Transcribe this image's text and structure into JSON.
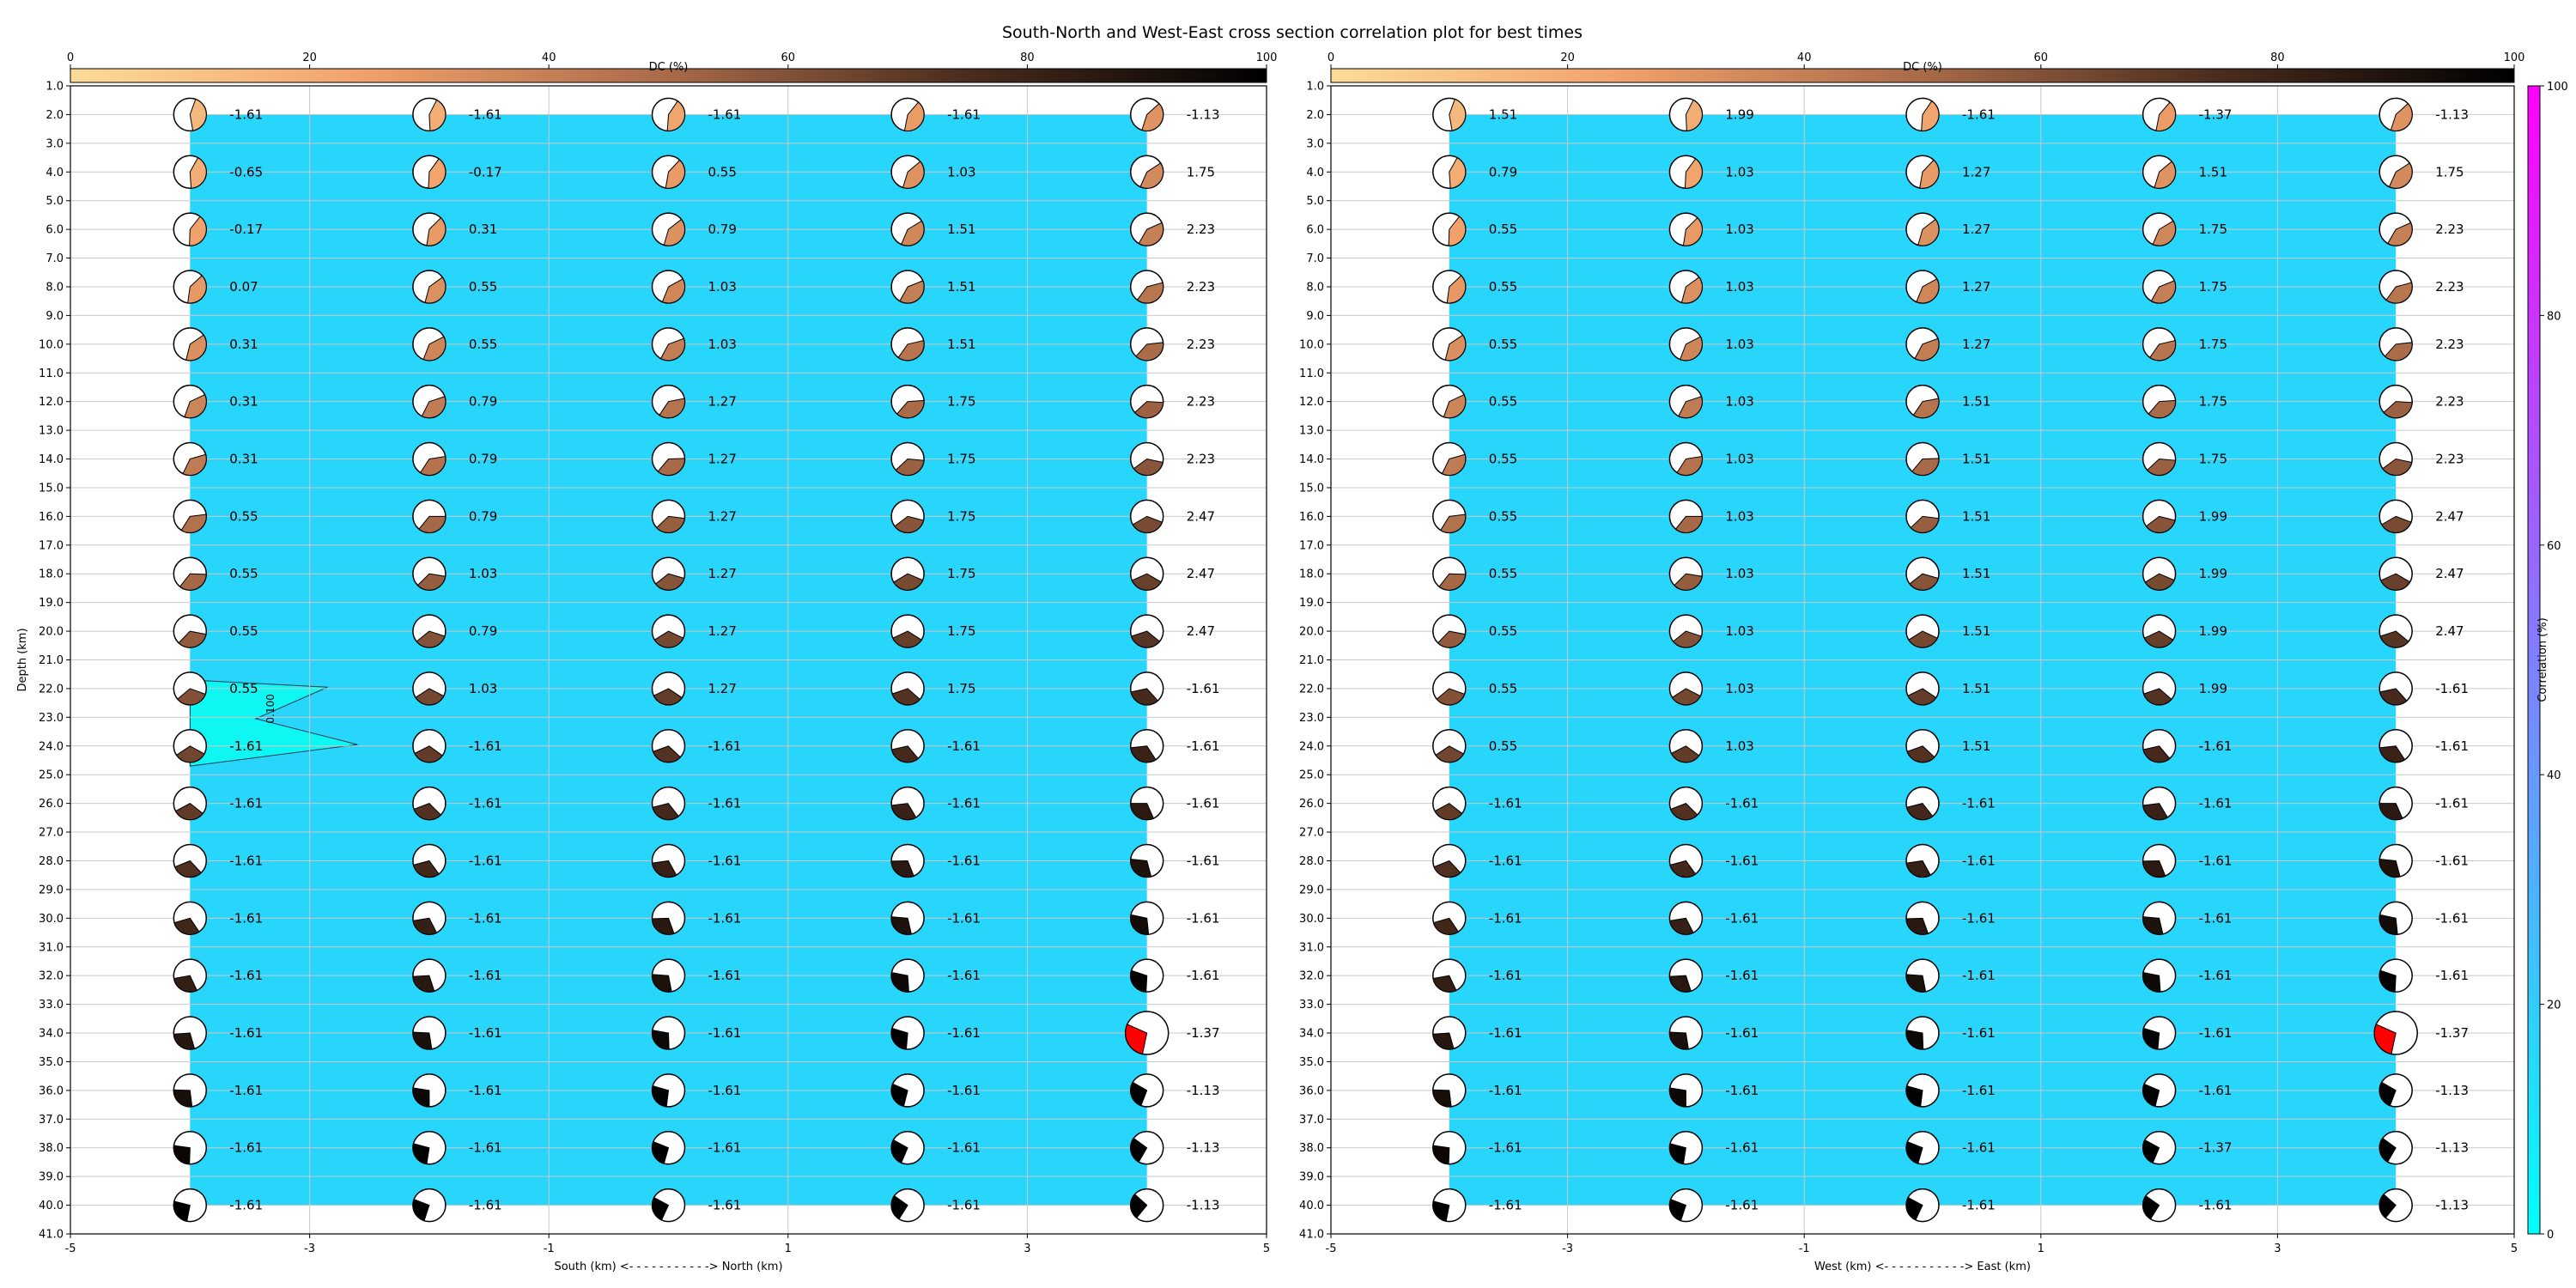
{
  "title": "South-North and West-East cross section correlation plot for best times",
  "colorbars": {
    "dc": {
      "label": "DC (%)",
      "ticks": [
        0,
        20,
        40,
        60,
        80,
        100
      ],
      "colors": [
        "#fddb9a",
        "#f0a06a",
        "#a86a48",
        "#4a2c1e",
        "#000000"
      ]
    },
    "correlation": {
      "label": "Correlation (%)",
      "ticks": [
        0,
        20,
        40,
        60,
        80,
        100
      ],
      "colors": [
        "#00ffff",
        "#ff00ff"
      ]
    }
  },
  "depth_axis": {
    "label": "Depth (km)",
    "ticks": [
      "1.0",
      "2.0",
      "3.0",
      "4.0",
      "5.0",
      "6.0",
      "7.0",
      "8.0",
      "9.0",
      "10.0",
      "11.0",
      "12.0",
      "13.0",
      "14.0",
      "15.0",
      "16.0",
      "17.0",
      "18.0",
      "19.0",
      "20.0",
      "21.0",
      "22.0",
      "23.0",
      "24.0",
      "25.0",
      "26.0",
      "27.0",
      "28.0",
      "29.0",
      "30.0",
      "31.0",
      "32.0",
      "33.0",
      "34.0",
      "35.0",
      "36.0",
      "37.0",
      "38.0",
      "39.0",
      "40.0",
      "41.0"
    ]
  },
  "chart_data": [
    {
      "type": "scatter",
      "name": "south-north",
      "xlabel": "South (km) <- - - - - - - - - - -> North (km)",
      "ylabel": "Depth (km)",
      "xlim": [
        -5,
        5
      ],
      "ylim": [
        41,
        1
      ],
      "xticks": [
        "-5",
        "-3",
        "-1",
        "1",
        "3",
        "5"
      ],
      "x": [
        -4,
        -2,
        0,
        2,
        4
      ],
      "depths": [
        2,
        4,
        6,
        8,
        10,
        12,
        14,
        16,
        18,
        20,
        22,
        24,
        26,
        28,
        30,
        32,
        34,
        36,
        38,
        40
      ],
      "values": [
        [
          "-1.61",
          "-1.61",
          "-1.61",
          "-1.61",
          "-1.13"
        ],
        [
          "-0.65",
          "-0.17",
          "0.55",
          "1.03",
          "1.75"
        ],
        [
          "-0.17",
          "0.31",
          "0.79",
          "1.51",
          "2.23"
        ],
        [
          "0.07",
          "0.55",
          "1.03",
          "1.51",
          "2.23"
        ],
        [
          "0.31",
          "0.55",
          "1.03",
          "1.51",
          "2.23"
        ],
        [
          "0.31",
          "0.79",
          "1.27",
          "1.75",
          "2.23"
        ],
        [
          "0.31",
          "0.79",
          "1.27",
          "1.75",
          "2.23"
        ],
        [
          "0.55",
          "0.79",
          "1.27",
          "1.75",
          "2.47"
        ],
        [
          "0.55",
          "1.03",
          "1.27",
          "1.75",
          "2.47"
        ],
        [
          "0.55",
          "0.79",
          "1.27",
          "1.75",
          "2.47"
        ],
        [
          "0.55",
          "1.03",
          "1.27",
          "1.75",
          "-1.61"
        ],
        [
          "-1.61",
          "-1.61",
          "-1.61",
          "-1.61",
          "-1.61"
        ],
        [
          "-1.61",
          "-1.61",
          "-1.61",
          "-1.61",
          "-1.61"
        ],
        [
          "-1.61",
          "-1.61",
          "-1.61",
          "-1.61",
          "-1.61"
        ],
        [
          "-1.61",
          "-1.61",
          "-1.61",
          "-1.61",
          "-1.61"
        ],
        [
          "-1.61",
          "-1.61",
          "-1.61",
          "-1.61",
          "-1.61"
        ],
        [
          "-1.61",
          "-1.61",
          "-1.61",
          "-1.61",
          "-1.37"
        ],
        [
          "-1.61",
          "-1.61",
          "-1.61",
          "-1.61",
          "-1.13"
        ],
        [
          "-1.61",
          "-1.61",
          "-1.61",
          "-1.61",
          "-1.13"
        ],
        [
          "-1.61",
          "-1.61",
          "-1.61",
          "-1.61",
          "-1.13"
        ]
      ],
      "contour_label": "0.100",
      "best_solution": {
        "x": 4,
        "depth": 34,
        "value": "-1.37",
        "color": "#ff0000"
      }
    },
    {
      "type": "scatter",
      "name": "west-east",
      "xlabel": "West (km) <- - - - - - - - - - -> East (km)",
      "ylabel": "",
      "xlim": [
        -5,
        5
      ],
      "ylim": [
        41,
        1
      ],
      "xticks": [
        "-5",
        "-3",
        "-1",
        "1",
        "3",
        "5"
      ],
      "x": [
        -4,
        -2,
        0,
        2,
        4
      ],
      "depths": [
        2,
        4,
        6,
        8,
        10,
        12,
        14,
        16,
        18,
        20,
        22,
        24,
        26,
        28,
        30,
        32,
        34,
        36,
        38,
        40
      ],
      "values": [
        [
          "1.51",
          "1.99",
          "-1.61",
          "-1.37",
          "-1.13"
        ],
        [
          "0.79",
          "1.03",
          "1.27",
          "1.51",
          "1.75"
        ],
        [
          "0.55",
          "1.03",
          "1.27",
          "1.75",
          "2.23"
        ],
        [
          "0.55",
          "1.03",
          "1.27",
          "1.75",
          "2.23"
        ],
        [
          "0.55",
          "1.03",
          "1.27",
          "1.75",
          "2.23"
        ],
        [
          "0.55",
          "1.03",
          "1.51",
          "1.75",
          "2.23"
        ],
        [
          "0.55",
          "1.03",
          "1.51",
          "1.75",
          "2.23"
        ],
        [
          "0.55",
          "1.03",
          "1.51",
          "1.99",
          "2.47"
        ],
        [
          "0.55",
          "1.03",
          "1.51",
          "1.99",
          "2.47"
        ],
        [
          "0.55",
          "1.03",
          "1.51",
          "1.99",
          "2.47"
        ],
        [
          "0.55",
          "1.03",
          "1.51",
          "1.99",
          "-1.61"
        ],
        [
          "0.55",
          "1.03",
          "1.51",
          "-1.61",
          "-1.61"
        ],
        [
          "-1.61",
          "-1.61",
          "-1.61",
          "-1.61",
          "-1.61"
        ],
        [
          "-1.61",
          "-1.61",
          "-1.61",
          "-1.61",
          "-1.61"
        ],
        [
          "-1.61",
          "-1.61",
          "-1.61",
          "-1.61",
          "-1.61"
        ],
        [
          "-1.61",
          "-1.61",
          "-1.61",
          "-1.61",
          "-1.61"
        ],
        [
          "-1.61",
          "-1.61",
          "-1.61",
          "-1.61",
          "-1.37"
        ],
        [
          "-1.61",
          "-1.61",
          "-1.61",
          "-1.61",
          "-1.13"
        ],
        [
          "-1.61",
          "-1.61",
          "-1.61",
          "-1.37",
          "-1.13"
        ],
        [
          "-1.61",
          "-1.61",
          "-1.61",
          "-1.61",
          "-1.13"
        ]
      ],
      "best_solution": {
        "x": 4,
        "depth": 34,
        "value": "-1.37",
        "color": "#ff0000"
      }
    }
  ],
  "colors": {
    "field": "#29d6fb",
    "contour_patch": "#0ff7f2",
    "grid": "#c9c9c9",
    "best": "#ff0000"
  }
}
